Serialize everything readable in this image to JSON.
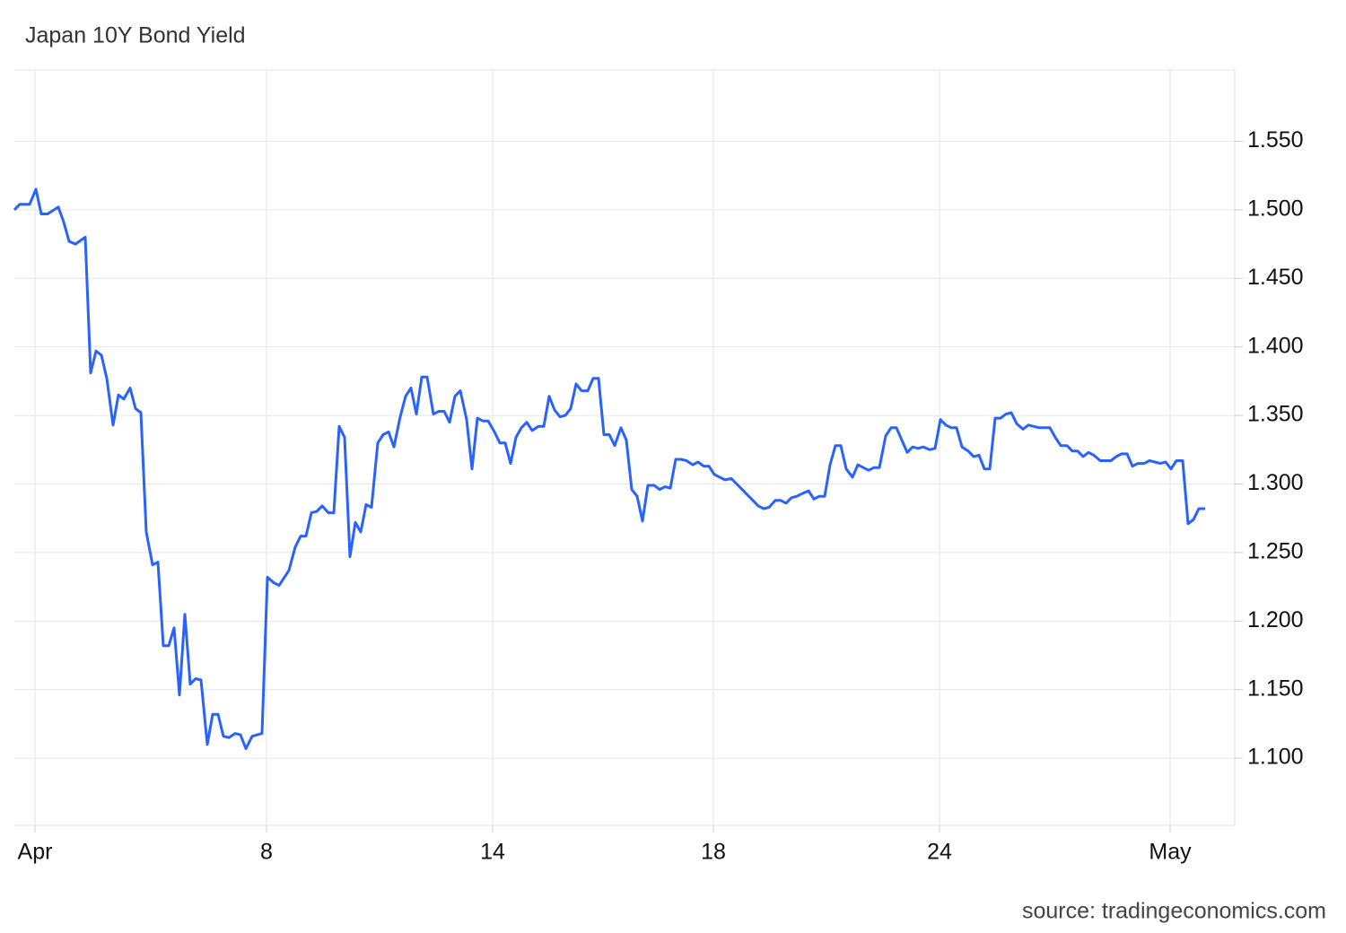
{
  "chart_data": {
    "type": "line",
    "title": "Japan 10Y Bond Yield",
    "source": "source: tradingeconomics.com",
    "x": [
      0,
      6,
      17,
      24,
      30,
      37,
      49,
      55,
      61,
      68,
      79,
      85,
      91,
      97,
      103,
      110,
      116,
      122,
      129,
      135,
      141,
      147,
      154,
      160,
      166,
      172,
      178,
      184,
      190,
      196,
      202,
      208,
      215,
      221,
      227,
      233,
      239,
      246,
      252,
      258,
      265,
      276,
      282,
      289,
      295,
      300,
      306,
      313,
      319,
      325,
      331,
      337,
      343,
      350,
      356,
      362,
      368,
      374,
      380,
      386,
      392,
      398,
      405,
      411,
      417,
      423,
      430,
      436,
      442,
      448,
      454,
      460,
      467,
      473,
      479,
      485,
      491,
      497,
      504,
      510,
      516,
      522,
      528,
      535,
      541,
      547,
      553,
      559,
      565,
      571,
      577,
      584,
      590,
      596,
      602,
      608,
      614,
      620,
      626,
      632,
      639,
      645,
      651,
      657,
      663,
      669,
      676,
      682,
      688,
      694,
      700,
      706,
      713,
      719,
      725,
      731,
      737,
      743,
      749,
      756,
      762,
      768,
      774,
      780,
      786,
      792,
      799,
      805,
      811,
      817,
      823,
      829,
      835,
      841,
      848,
      854,
      860,
      866,
      872,
      878,
      885,
      891,
      897,
      903,
      909,
      915,
      921,
      927,
      934,
      940,
      946,
      952,
      958,
      964,
      971,
      977,
      983,
      989,
      995,
      1001,
      1007,
      1013,
      1020,
      1026,
      1032,
      1038,
      1044,
      1050,
      1056,
      1063,
      1069,
      1075,
      1081,
      1087,
      1093,
      1099,
      1105,
      1111,
      1117,
      1124,
      1130,
      1136,
      1142,
      1148,
      1154,
      1160,
      1166,
      1173,
      1179,
      1185,
      1191,
      1197,
      1203,
      1210,
      1216,
      1222,
      1228,
      1234,
      1240,
      1246,
      1252,
      1259,
      1265,
      1271,
      1277,
      1283,
      1289,
      1295,
      1302,
      1308,
      1314,
      1320,
      1327
    ],
    "series": [
      {
        "name": "Japan 10Y Bond Yield",
        "color": "#2962ff",
        "values": [
          1.5,
          1.504,
          1.504,
          1.515,
          1.497,
          1.497,
          1.502,
          1.491,
          1.477,
          1.475,
          1.48,
          1.381,
          1.397,
          1.394,
          1.377,
          1.343,
          1.365,
          1.362,
          1.37,
          1.355,
          1.352,
          1.265,
          1.241,
          1.243,
          1.182,
          1.182,
          1.195,
          1.146,
          1.205,
          1.154,
          1.158,
          1.157,
          1.11,
          1.132,
          1.132,
          1.116,
          1.115,
          1.118,
          1.117,
          1.107,
          1.116,
          1.118,
          1.232,
          1.228,
          1.226,
          1.231,
          1.237,
          1.254,
          1.262,
          1.262,
          1.279,
          1.28,
          1.284,
          1.279,
          1.279,
          1.342,
          1.334,
          1.247,
          1.272,
          1.265,
          1.285,
          1.283,
          1.33,
          1.336,
          1.338,
          1.327,
          1.349,
          1.364,
          1.37,
          1.351,
          1.378,
          1.378,
          1.351,
          1.353,
          1.353,
          1.345,
          1.364,
          1.368,
          1.347,
          1.311,
          1.348,
          1.346,
          1.346,
          1.338,
          1.33,
          1.33,
          1.315,
          1.334,
          1.341,
          1.345,
          1.339,
          1.342,
          1.342,
          1.364,
          1.354,
          1.349,
          1.35,
          1.355,
          1.373,
          1.368,
          1.368,
          1.377,
          1.377,
          1.336,
          1.336,
          1.328,
          1.341,
          1.332,
          1.296,
          1.291,
          1.273,
          1.299,
          1.299,
          1.296,
          1.298,
          1.297,
          1.318,
          1.318,
          1.317,
          1.314,
          1.316,
          1.313,
          1.313,
          1.307,
          1.305,
          1.303,
          1.304,
          1.3,
          1.296,
          1.292,
          1.288,
          1.284,
          1.282,
          1.283,
          1.288,
          1.288,
          1.286,
          1.29,
          1.291,
          1.293,
          1.295,
          1.289,
          1.291,
          1.291,
          1.314,
          1.328,
          1.328,
          1.311,
          1.305,
          1.314,
          1.312,
          1.31,
          1.312,
          1.312,
          1.335,
          1.341,
          1.341,
          1.332,
          1.323,
          1.327,
          1.326,
          1.327,
          1.325,
          1.326,
          1.347,
          1.343,
          1.341,
          1.341,
          1.327,
          1.324,
          1.32,
          1.321,
          1.311,
          1.311,
          1.348,
          1.348,
          1.351,
          1.352,
          1.344,
          1.34,
          1.343,
          1.342,
          1.341,
          1.341,
          1.341,
          1.334,
          1.328,
          1.328,
          1.324,
          1.324,
          1.32,
          1.323,
          1.321,
          1.317,
          1.317,
          1.317,
          1.32,
          1.322,
          1.322,
          1.313,
          1.315,
          1.315,
          1.317,
          1.316,
          1.315,
          1.316,
          1.311,
          1.317,
          1.317,
          1.271,
          1.274,
          1.282,
          1.282
        ]
      }
    ],
    "xlim": [
      0,
      1360
    ],
    "xticks": [
      {
        "value": 23,
        "label": "Apr"
      },
      {
        "value": 281,
        "label": "8"
      },
      {
        "value": 533,
        "label": "14"
      },
      {
        "value": 779,
        "label": "18"
      },
      {
        "value": 1031,
        "label": "24"
      },
      {
        "value": 1288,
        "label": "May"
      }
    ],
    "ylim": [
      1.051,
      1.602
    ],
    "yticks": [
      {
        "value": 1.1,
        "label": "1.100"
      },
      {
        "value": 1.15,
        "label": "1.150"
      },
      {
        "value": 1.2,
        "label": "1.200"
      },
      {
        "value": 1.25,
        "label": "1.250"
      },
      {
        "value": 1.3,
        "label": "1.300"
      },
      {
        "value": 1.35,
        "label": "1.350"
      },
      {
        "value": 1.4,
        "label": "1.400"
      },
      {
        "value": 1.45,
        "label": "1.450"
      },
      {
        "value": 1.5,
        "label": "1.500"
      },
      {
        "value": 1.55,
        "label": "1.550"
      }
    ],
    "grid": true
  }
}
